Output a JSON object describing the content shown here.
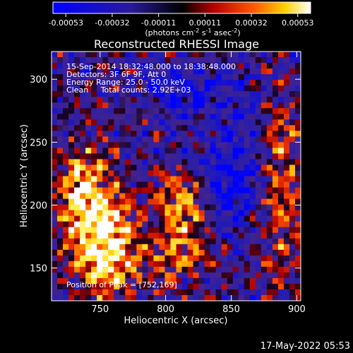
{
  "chart_data": {
    "type": "heatmap",
    "title": "Reconstructed RHESSI Image",
    "xlabel": "Heliocentric X (arcsec)",
    "ylabel": "Heliocentric Y (arcsec)",
    "xlim": [
      713,
      903
    ],
    "ylim": [
      124,
      322
    ],
    "xticks": [
      "750",
      "800",
      "850",
      "900"
    ],
    "yticks": [
      "150",
      "200",
      "250",
      "300"
    ],
    "colorbar": {
      "ticks": [
        "-0.00053",
        "-0.00032",
        "-0.00011",
        "0.00011",
        "0.00032",
        "0.00053"
      ],
      "unit_label": "(photons cm-2 s-1 asec-2)",
      "range": [
        -0.00053,
        0.00053
      ]
    },
    "annotations": [
      "15-Sep-2014 18:32:48.000 to 18:38:48.000",
      "Detectors: 3F 6F 9F, Att 0",
      "Energy Range: 25.0 - 50.0 keV",
      "Clean     Total counts: 2.92E+03",
      "Position of Peak = [752,169]"
    ],
    "peak": {
      "x": 752,
      "y": 169
    },
    "colors": {
      "min": "#0000ff",
      "zero": "#000000",
      "max": "#ffffff"
    }
  },
  "footer": {
    "date": "17-May-2022 05:53"
  }
}
